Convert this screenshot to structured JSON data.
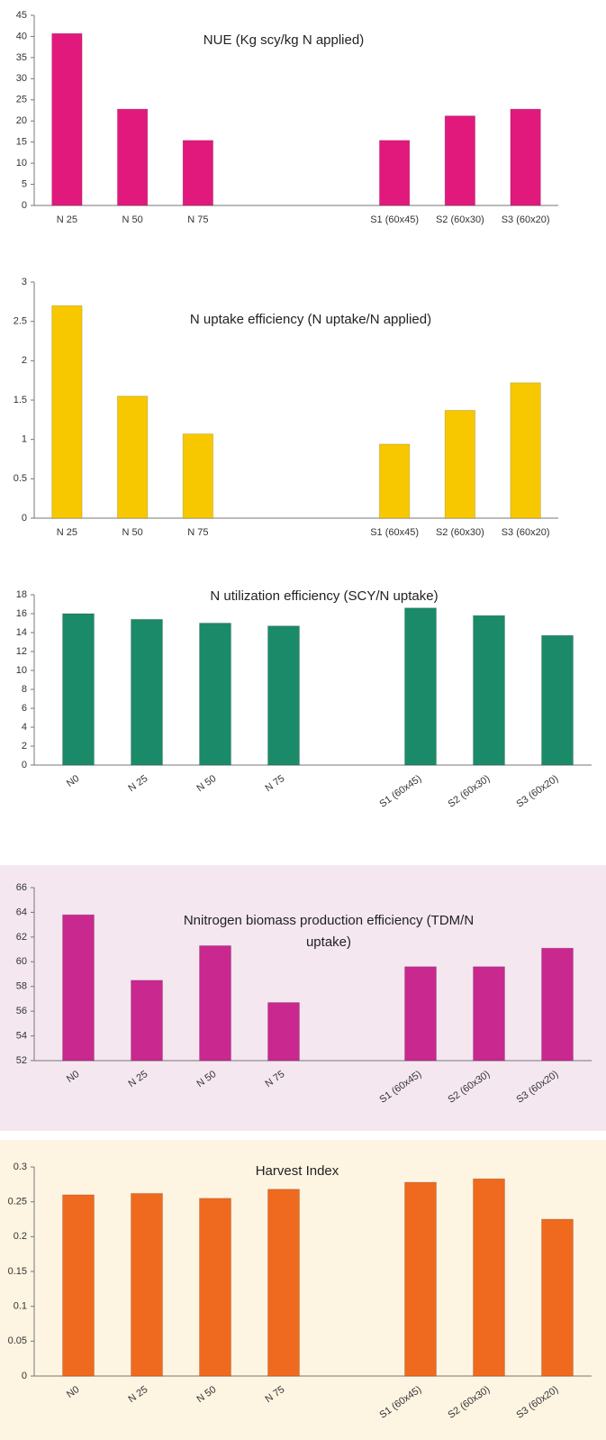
{
  "chart_data": [
    {
      "type": "bar",
      "title": "NUE (Kg scy/kg N applied)",
      "categories": [
        "N 25",
        "N 50",
        "N 75",
        null,
        null,
        "S1 (60x45)",
        "S2 (60x30)",
        "S3 (60x20)"
      ],
      "values": [
        40.7,
        22.8,
        15.4,
        null,
        null,
        15.4,
        21.2,
        22.8
      ],
      "color": "#e2197c",
      "ylim": [
        0,
        45
      ],
      "yticks": [
        0,
        5,
        10,
        15,
        20,
        25,
        30,
        35,
        40,
        45
      ]
    },
    {
      "type": "bar",
      "title": "N uptake efficiency (N uptake/N applied)",
      "categories": [
        "N 25",
        "N 50",
        "N 75",
        null,
        null,
        "S1 (60x45)",
        "S2 (60x30)",
        "S3 (60x20)"
      ],
      "values": [
        2.7,
        1.55,
        1.07,
        null,
        null,
        0.94,
        1.37,
        1.72
      ],
      "color": "#f7c800",
      "ylim": [
        0,
        3
      ],
      "yticks": [
        0,
        0.5,
        1,
        1.5,
        2,
        2.5,
        3
      ]
    },
    {
      "type": "bar",
      "title": "N utilization efficiency (SCY/N uptake)",
      "categories": [
        "N0",
        "N 25",
        "N 50",
        "N 75",
        null,
        "S1 (60x45)",
        "S2 (60x30)",
        "S3 (60x20)"
      ],
      "values": [
        16,
        15.4,
        15,
        14.7,
        null,
        16.6,
        15.8,
        13.7
      ],
      "color": "#1b8a68",
      "ylim": [
        0,
        18
      ],
      "yticks": [
        0,
        2,
        4,
        6,
        8,
        10,
        12,
        14,
        16,
        18
      ]
    },
    {
      "type": "bar",
      "title": [
        "Nnitrogen biomass production efficiency  (TDM/N",
        "uptake)"
      ],
      "categories": [
        "N0",
        "N 25",
        "N 50",
        "N 75",
        null,
        "S1 (60x45)",
        "S2 (60x30)",
        "S3 (60x20)"
      ],
      "values": [
        63.8,
        58.5,
        61.3,
        56.7,
        null,
        59.6,
        59.6,
        61.1
      ],
      "color": "#c9288f",
      "ylim": [
        52,
        66
      ],
      "yticks": [
        52,
        54,
        56,
        58,
        60,
        62,
        64,
        66
      ]
    },
    {
      "type": "bar",
      "title": "Harvest Index",
      "categories": [
        "N0",
        "N 25",
        "N 50",
        "N 75",
        null,
        "S1 (60x45)",
        "S2 (60x30)",
        "S3 (60x20)"
      ],
      "values": [
        0.26,
        0.262,
        0.255,
        0.268,
        null,
        0.278,
        0.283,
        0.225
      ],
      "color": "#ef6a1f",
      "ylim": [
        0,
        0.3
      ],
      "yticks": [
        0,
        0.05,
        0.1,
        0.15,
        0.2,
        0.25,
        0.3
      ]
    }
  ]
}
